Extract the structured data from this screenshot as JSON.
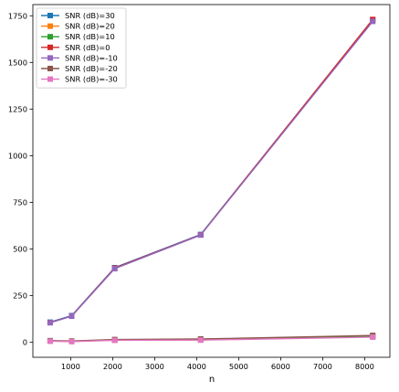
{
  "chart_data": {
    "type": "line",
    "title": "",
    "xlabel": "n",
    "ylabel": "",
    "xlim": [
      100,
      8600
    ],
    "ylim": [
      -80,
      1810
    ],
    "x_ticks": [
      1000,
      2000,
      3000,
      4000,
      5000,
      6000,
      7000,
      8000
    ],
    "y_ticks": [
      0,
      250,
      500,
      750,
      1000,
      1250,
      1500,
      1750
    ],
    "grid": false,
    "legend": "top-left",
    "x": [
      512,
      1024,
      2048,
      4096,
      8192
    ],
    "series": [
      {
        "name": "SNR (dB)=30",
        "color": "#1f77b4",
        "values": [
          108,
          143,
          400,
          578,
          1728
        ]
      },
      {
        "name": "SNR (dB)=20",
        "color": "#ff7f0e",
        "values": [
          7,
          5,
          12,
          13,
          31
        ]
      },
      {
        "name": "SNR (dB)=10",
        "color": "#2ca02c",
        "values": [
          8,
          6,
          13,
          15,
          33
        ]
      },
      {
        "name": "SNR (dB)=0",
        "color": "#d62728",
        "values": [
          106,
          141,
          398,
          576,
          1730
        ]
      },
      {
        "name": "SNR (dB)=-10",
        "color": "#9467bd",
        "values": [
          105,
          140,
          395,
          575,
          1720
        ]
      },
      {
        "name": "SNR (dB)=-20",
        "color": "#8c564b",
        "values": [
          9,
          7,
          15,
          18,
          37
        ]
      },
      {
        "name": "SNR (dB)=-30",
        "color": "#e377c2",
        "values": [
          6,
          4,
          11,
          12,
          28
        ]
      }
    ]
  }
}
